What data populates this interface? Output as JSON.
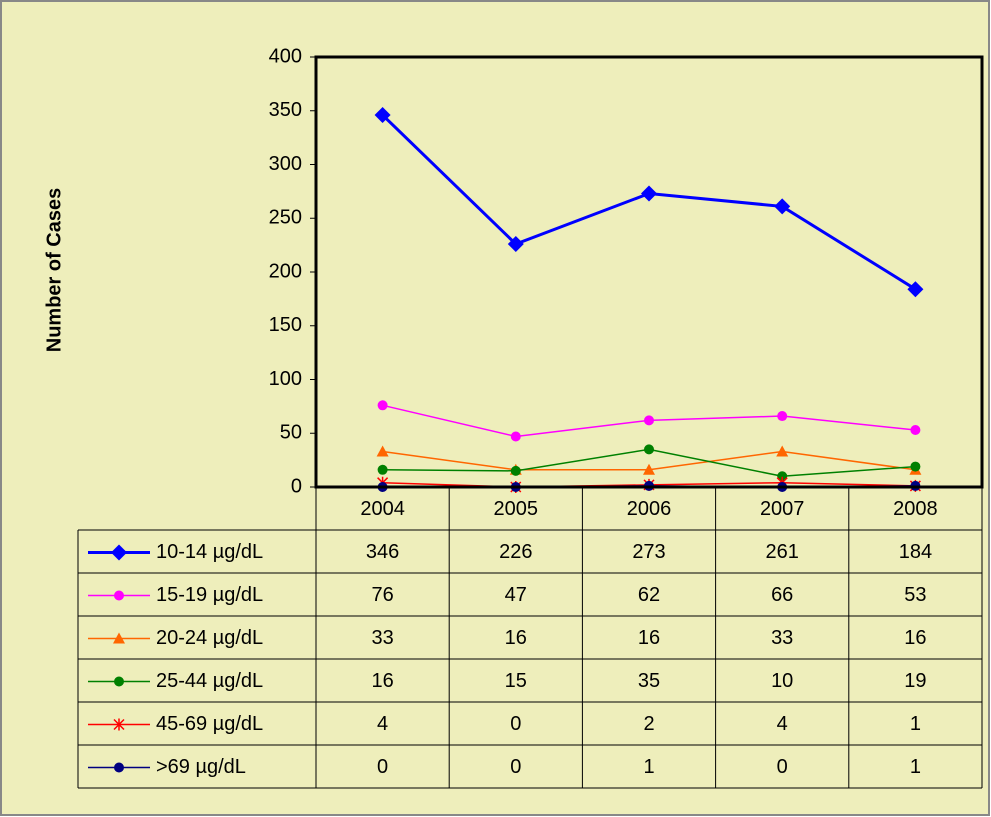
{
  "chart_data": {
    "type": "line",
    "y_label": "Number of Cases",
    "categories": [
      "2004",
      "2005",
      "2006",
      "2007",
      "2008"
    ],
    "ylim": [
      0,
      400
    ],
    "yticks": [
      0,
      50,
      100,
      150,
      200,
      250,
      300,
      350,
      400
    ],
    "series": [
      {
        "name": "10-14 µg/dL",
        "color": "#0000FF",
        "marker": "diamond",
        "values": [
          346,
          226,
          273,
          261,
          184
        ]
      },
      {
        "name": "15-19 µg/dL",
        "color": "#FF00FF",
        "marker": "circle",
        "values": [
          76,
          47,
          62,
          66,
          53
        ]
      },
      {
        "name": "20-24 µg/dL",
        "color": "#FF6600",
        "marker": "triangle",
        "values": [
          33,
          16,
          16,
          33,
          16
        ]
      },
      {
        "name": "25-44 µg/dL",
        "color": "#008000",
        "marker": "circle",
        "values": [
          16,
          15,
          35,
          10,
          19
        ]
      },
      {
        "name": "45-69 µg/dL",
        "color": "#FF0000",
        "marker": "star",
        "values": [
          4,
          0,
          2,
          4,
          1
        ]
      },
      {
        "name": ">69 µg/dL",
        "color": "#000080",
        "marker": "circle",
        "values": [
          0,
          0,
          1,
          0,
          1
        ]
      }
    ]
  }
}
